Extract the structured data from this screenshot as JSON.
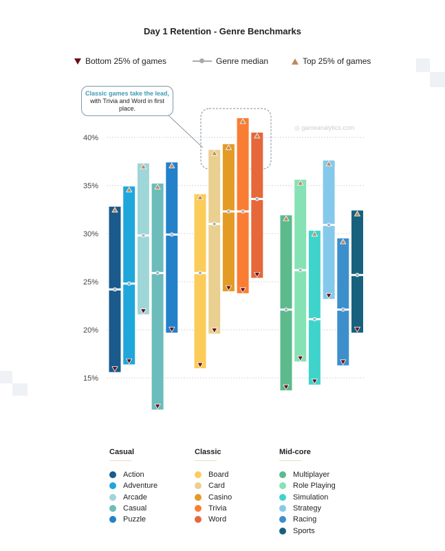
{
  "chart_data": {
    "type": "range-bar",
    "title": "Day 1 Retention - Genre Benchmarks",
    "legend": {
      "bottom": "Bottom 25% of games",
      "median": "Genre median",
      "top": "Top 25% of games",
      "placement": "top"
    },
    "annotation": {
      "highlight": "Classic games take the lead,",
      "rest": " with Trivia and Word in first place."
    },
    "watermark": "gameanalytics.com",
    "y_ticks": [
      "15%",
      "20%",
      "25%",
      "30%",
      "35%",
      "40%"
    ],
    "y_tick_values": [
      15,
      20,
      25,
      30,
      35,
      40
    ],
    "ylim": [
      11,
      43
    ],
    "grid": true,
    "marker_colors": {
      "top": "#c08a5e",
      "bottom": "#6b1016",
      "median": "#ffffff"
    },
    "groups": [
      {
        "name": "Casual",
        "genres": [
          {
            "name": "Action",
            "color": "#1a5a8c",
            "bottom": 15.6,
            "median": 24.2,
            "top": 32.8
          },
          {
            "name": "Adventure",
            "color": "#1fa7dc",
            "bottom": 16.4,
            "median": 24.8,
            "top": 34.9
          },
          {
            "name": "Arcade",
            "color": "#9fd6d8",
            "bottom": 21.6,
            "median": 29.8,
            "top": 37.3
          },
          {
            "name": "Casual",
            "color": "#6bbcba",
            "bottom": 11.7,
            "median": 25.9,
            "top": 35.2
          },
          {
            "name": "Puzzle",
            "color": "#2381c9",
            "bottom": 19.7,
            "median": 29.9,
            "top": 37.4
          }
        ]
      },
      {
        "name": "Classic",
        "genres": [
          {
            "name": "Board",
            "color": "#fccc5a",
            "bottom": 16.0,
            "median": 25.9,
            "top": 34.1
          },
          {
            "name": "Card",
            "color": "#ead090",
            "bottom": 19.6,
            "median": 31.0,
            "top": 38.7
          },
          {
            "name": "Casino",
            "color": "#e39b26",
            "bottom": 24.0,
            "median": 32.3,
            "top": 39.3
          },
          {
            "name": "Trivia",
            "color": "#fa7d34",
            "bottom": 23.8,
            "median": 32.3,
            "top": 42.0
          },
          {
            "name": "Word",
            "color": "#e5673a",
            "bottom": 25.4,
            "median": 33.6,
            "top": 40.5
          }
        ]
      },
      {
        "name": "Mid-core",
        "genres": [
          {
            "name": "Multiplayer",
            "color": "#5cba8d",
            "bottom": 13.7,
            "median": 22.1,
            "top": 31.9
          },
          {
            "name": "Role Playing",
            "color": "#86e2b4",
            "bottom": 16.7,
            "median": 26.2,
            "top": 35.6
          },
          {
            "name": "Simulation",
            "color": "#3ed4cc",
            "bottom": 14.3,
            "median": 21.1,
            "top": 30.3
          },
          {
            "name": "Strategy",
            "color": "#84c9ec",
            "bottom": 23.2,
            "median": 30.9,
            "top": 37.6
          },
          {
            "name": "Racing",
            "color": "#3d8fcc",
            "bottom": 16.3,
            "median": 22.1,
            "top": 29.5
          },
          {
            "name": "Sports",
            "color": "#18617e",
            "bottom": 19.7,
            "median": 25.7,
            "top": 32.4
          }
        ]
      }
    ]
  }
}
